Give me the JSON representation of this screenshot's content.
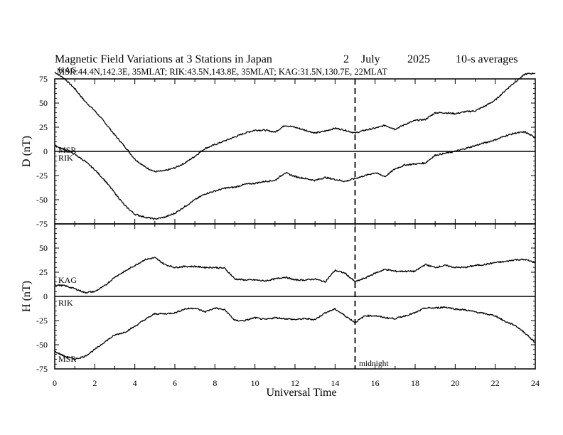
{
  "chart_data": {
    "type": "line",
    "title": {
      "prefix": "Magnetic Field Variations at 3 Stations in Japan",
      "day": "2",
      "month": "July",
      "year": "2025",
      "averaging": "10-s averages"
    },
    "subtitle": "MSR:44.4N,142.3E, 35MLAT;  RIK:43.5N,143.8E, 35MLAT;  KAG:31.5N,130.7E, 22MLAT",
    "xlabel": "Universal Time",
    "xlim": [
      0,
      24
    ],
    "xticks": [
      0,
      2,
      4,
      6,
      8,
      10,
      12,
      14,
      16,
      18,
      20,
      22,
      24
    ],
    "midnight_marker": {
      "x": 15,
      "label": "midnight"
    },
    "panels": [
      {
        "name": "D",
        "ylabel": "D (nT)",
        "ylim": [
          -75,
          75
        ],
        "yticks": [
          75,
          50,
          25,
          0,
          -25,
          -50,
          -75
        ],
        "baseline": 0,
        "series": [
          {
            "name": "KAG",
            "label": "KAG",
            "x": [
              0,
              0.5,
              1,
              1.5,
              2,
              2.5,
              3,
              3.5,
              4,
              4.5,
              5,
              5.5,
              6,
              6.5,
              7,
              7.5,
              8,
              8.5,
              9,
              9.5,
              10,
              10.5,
              11,
              11.5,
              12,
              12.5,
              13,
              13.5,
              14,
              14.5,
              15,
              15.5,
              16,
              16.5,
              17,
              17.5,
              18,
              18.5,
              19,
              19.5,
              20,
              20.5,
              21,
              21.5,
              22,
              22.5,
              23,
              23.5,
              24
            ],
            "values": [
              82,
              75,
              65,
              52,
              42,
              30,
              17,
              5,
              -8,
              -16,
              -21,
              -20,
              -17,
              -12,
              -5,
              3,
              7,
              11,
              15,
              19,
              22,
              22,
              20,
              27,
              25,
              22,
              19,
              21,
              24,
              22,
              19,
              22,
              24,
              27,
              23,
              28,
              32,
              33,
              40,
              40,
              39,
              41,
              42,
              47,
              53,
              63,
              72,
              80,
              81
            ]
          },
          {
            "name": "MSR",
            "label": "MSR",
            "x": [
              0,
              0.5,
              1,
              1.5,
              2,
              2.5,
              3,
              3.5,
              4,
              4.5,
              5,
              5.5,
              6,
              6.5,
              7,
              7.5,
              8,
              8.5,
              9,
              9.5,
              10,
              10.5,
              11,
              11.5,
              12,
              12.5,
              13,
              13.5,
              14,
              14.5,
              15,
              15.5,
              16,
              16.5,
              17,
              17.5,
              18,
              18.5,
              19,
              19.5,
              20,
              20.5,
              21,
              21.5,
              22,
              22.5,
              23,
              23.5,
              24
            ],
            "values": [
              6,
              2,
              -3,
              -10,
              -19,
              -30,
              -43,
              -56,
              -65,
              -68,
              -70,
              -68,
              -64,
              -57,
              -50,
              -44,
              -41,
              -38,
              -37,
              -34,
              -33,
              -31,
              -30,
              -22,
              -26,
              -28,
              -30,
              -27,
              -29,
              -31,
              -28,
              -25,
              -22,
              -26,
              -18,
              -14,
              -13,
              -12,
              -4,
              -2,
              0,
              3,
              6,
              9,
              12,
              16,
              19,
              20,
              14
            ]
          },
          {
            "name": "RIK",
            "label": "RIK",
            "values_same_as": "MSR"
          }
        ]
      },
      {
        "name": "H",
        "ylabel": "H (nT)",
        "ylim": [
          -75,
          75
        ],
        "yticks": [
          50,
          25,
          0,
          -25,
          -50,
          -75
        ],
        "baseline": 0,
        "series": [
          {
            "name": "KAG",
            "label": "KAG",
            "x": [
              0,
              0.5,
              1,
              1.5,
              2,
              2.5,
              3,
              3.5,
              4,
              4.5,
              5,
              5.5,
              6,
              6.5,
              7,
              7.5,
              8,
              8.5,
              9,
              9.5,
              10,
              10.5,
              11,
              11.5,
              12,
              12.5,
              13,
              13.5,
              14,
              14.5,
              15,
              15.5,
              16,
              16.5,
              17,
              17.5,
              18,
              18.5,
              19,
              19.5,
              20,
              20.5,
              21,
              21.5,
              22,
              22.5,
              23,
              23.5,
              24
            ],
            "values": [
              12,
              11,
              8,
              4,
              5,
              11,
              20,
              26,
              32,
              38,
              40,
              33,
              30,
              31,
              31,
              30,
              30,
              29,
              18,
              17,
              17,
              16,
              18,
              20,
              17,
              17,
              18,
              15,
              27,
              24,
              15,
              19,
              24,
              28,
              26,
              26,
              26,
              33,
              30,
              32,
              30,
              30,
              32,
              33,
              35,
              36,
              38,
              38,
              35
            ]
          },
          {
            "name": "RIK",
            "label": "RIK",
            "x": [
              0,
              0.5,
              1,
              1.5,
              2,
              2.5,
              3,
              3.5,
              4,
              4.5,
              5,
              5.5,
              6,
              6.5,
              7,
              7.5,
              8,
              8.5,
              9,
              9.5,
              10,
              10.5,
              11,
              11.5,
              12,
              12.5,
              13,
              13.5,
              14,
              14.5,
              15,
              15.5,
              16,
              16.5,
              17,
              17.5,
              18,
              18.5,
              19,
              19.5,
              20,
              20.5,
              21,
              21.5,
              22,
              22.5,
              23,
              23.5,
              24
            ],
            "values": [
              -57,
              -62,
              -65,
              -62,
              -55,
              -47,
              -40,
              -37,
              -31,
              -24,
              -18,
              -18,
              -17,
              -13,
              -12,
              -16,
              -12,
              -14,
              -25,
              -25,
              -22,
              -24,
              -22,
              -23,
              -24,
              -23,
              -24,
              -17,
              -13,
              -20,
              -27,
              -20,
              -20,
              -22,
              -23,
              -20,
              -17,
              -12,
              -12,
              -11,
              -13,
              -14,
              -16,
              -18,
              -20,
              -26,
              -30,
              -38,
              -48
            ]
          },
          {
            "name": "MSR",
            "label": "MSR",
            "values_same_as": "RIK"
          }
        ]
      }
    ]
  }
}
